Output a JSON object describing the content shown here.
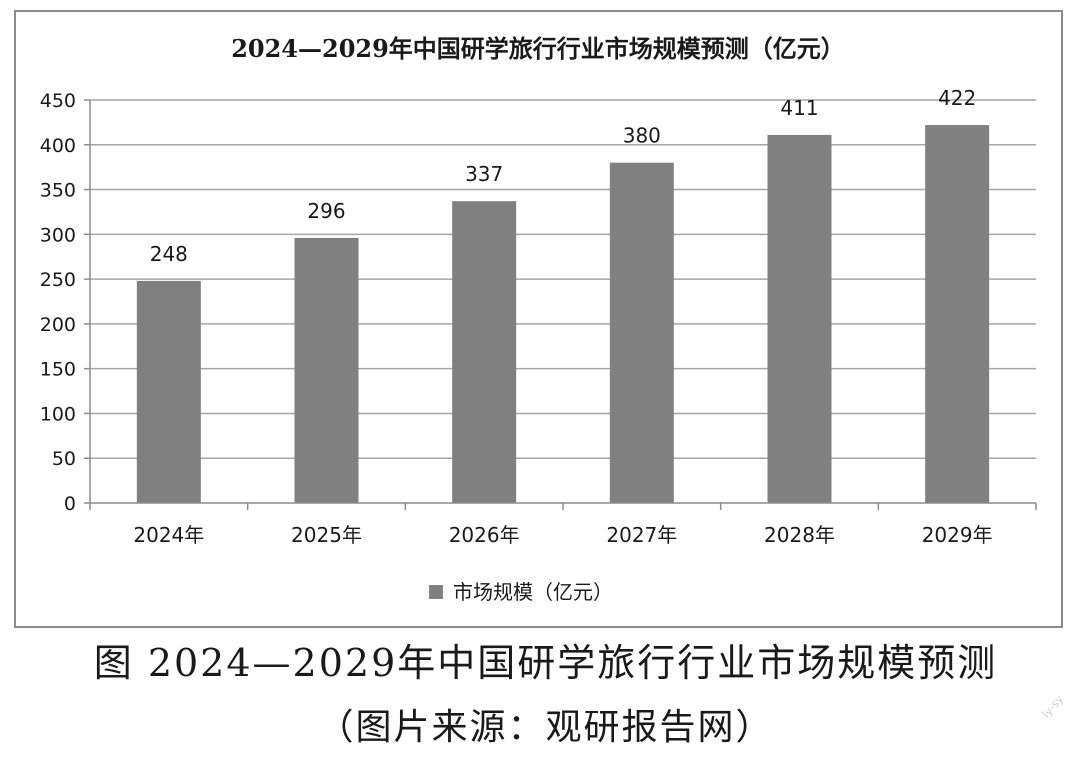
{
  "chart_data": {
    "type": "bar",
    "title": "2024—2029年中国研学旅行行业市场规模预测（亿元）",
    "categories": [
      "2024年",
      "2025年",
      "2026年",
      "2027年",
      "2028年",
      "2029年"
    ],
    "series": [
      {
        "name": "市场规模（亿元）",
        "values": [
          248,
          296,
          337,
          380,
          411,
          422
        ]
      }
    ],
    "data_labels": [
      "248",
      "296",
      "337",
      "380",
      "411",
      "422"
    ],
    "ylim": [
      0,
      450
    ],
    "yticks": [
      0,
      50,
      100,
      150,
      200,
      250,
      300,
      350,
      400,
      450
    ],
    "ytick_labels": [
      "0",
      "50",
      "100",
      "150",
      "200",
      "250",
      "300",
      "350",
      "400",
      "450"
    ],
    "grid": true,
    "legend_position": "bottom",
    "colors": {
      "bar": "#808080",
      "grid": "#a6a6a6",
      "axis": "#8c8c8c",
      "text": "#1a1a1a"
    }
  },
  "caption": {
    "main": "图 2024—2029年中国研学旅行行业市场规模预测",
    "source": "（图片来源：观研报告网）"
  },
  "watermark": "ly-sy"
}
